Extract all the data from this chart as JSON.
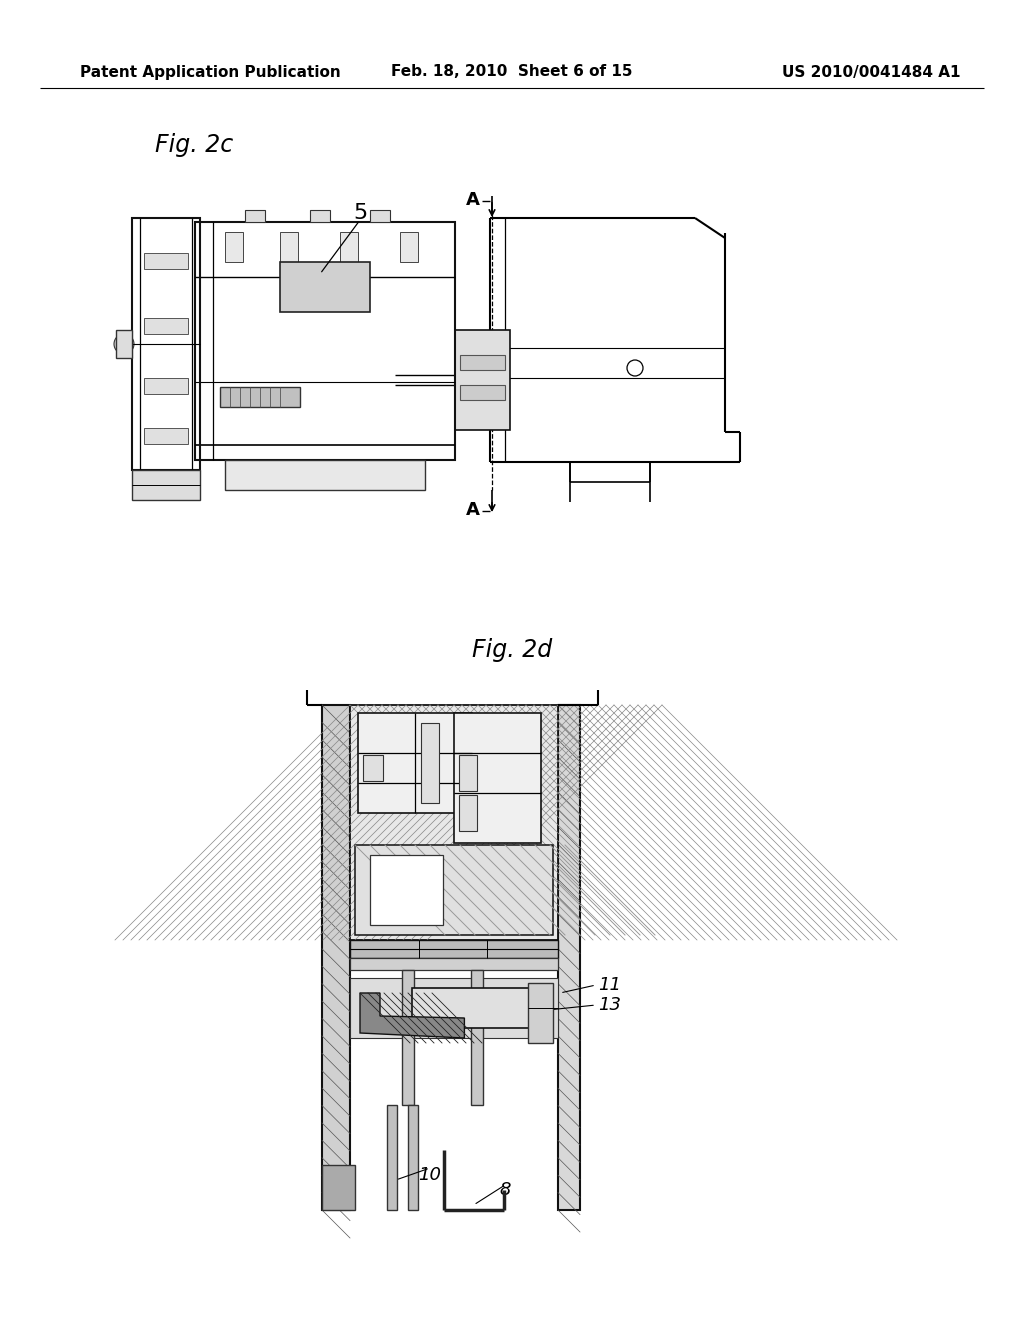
{
  "bg": "#ffffff",
  "lc": "#000000",
  "header_left": "Patent Application Publication",
  "header_center": "Feb. 18, 2010  Sheet 6 of 15",
  "header_right": "US 2010/0041484 A1",
  "fig2c_label": "Fig. 2c",
  "fig2d_label": "Fig. 2d",
  "label5": "5",
  "labelA_top": "A",
  "labelA_bot": "A",
  "label11": "11",
  "label13": "13",
  "label10": "10",
  "label8": "8"
}
